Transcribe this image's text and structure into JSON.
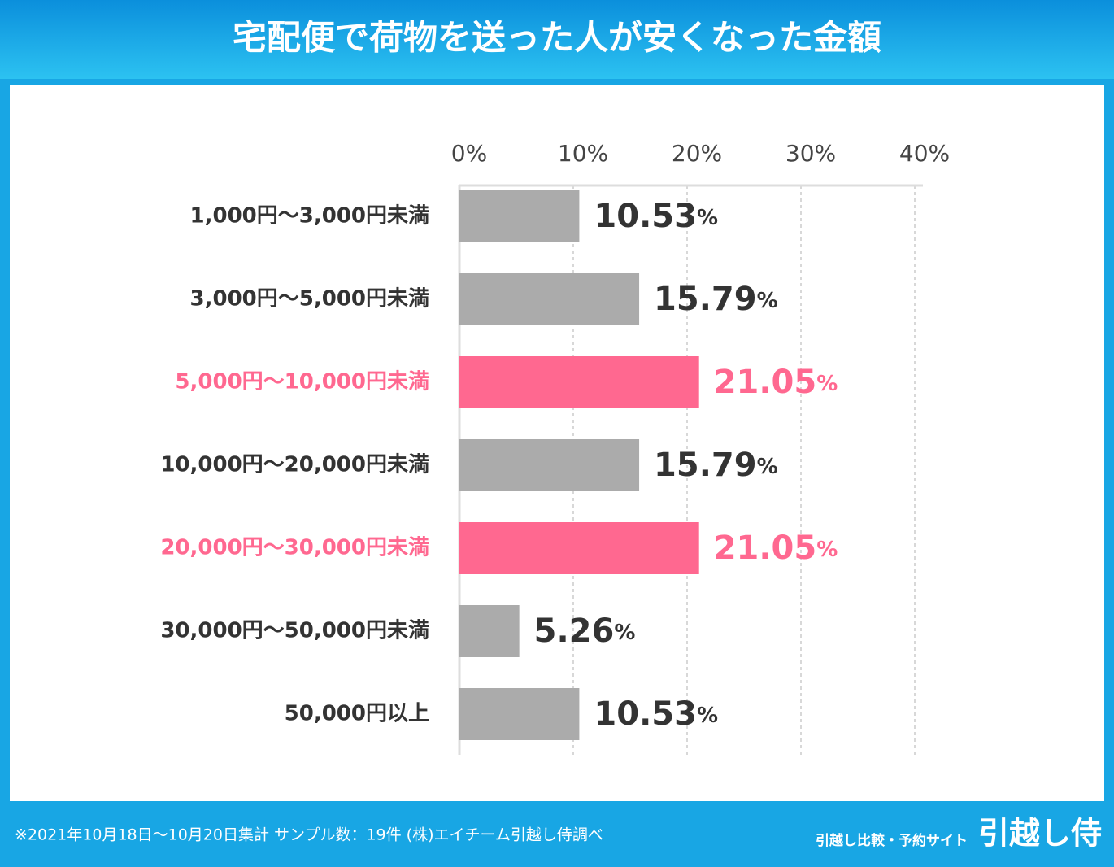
{
  "chart_data": {
    "type": "bar",
    "orientation": "horizontal",
    "title": "宅配便で荷物を送った人が安くなった金額",
    "categories": [
      "1,000円～3,000円未満",
      "3,000円～5,000円未満",
      "5,000円～10,000円未満",
      "10,000円～20,000円未満",
      "20,000円～30,000円未満",
      "30,000円～50,000円未満",
      "50,000円以上"
    ],
    "values": [
      10.53,
      15.79,
      21.05,
      15.79,
      21.05,
      5.26,
      10.53
    ],
    "value_labels": [
      "10.53%",
      "15.79%",
      "21.05%",
      "15.79%",
      "21.05%",
      "5.26%",
      "10.53%"
    ],
    "colors": [
      "#ababab",
      "#ababab",
      "#ff6890",
      "#ababab",
      "#ff6890",
      "#ababab",
      "#ababab"
    ],
    "xlim": [
      0,
      40
    ],
    "xticks": [
      {
        "value": 0,
        "label": "0%"
      },
      {
        "value": 10,
        "label": "10%"
      },
      {
        "value": 20,
        "label": "20%"
      },
      {
        "value": 30,
        "label": "30%"
      },
      {
        "value": 40,
        "label": "40%"
      }
    ],
    "grid": true,
    "note": "※2021年10月18日～10月20日集計 サンプル数：19件 (株)エイチーム引越し侍調べ",
    "brand_tagline": "引越し比較・予約サイト",
    "brand_name": "引越し侍"
  }
}
